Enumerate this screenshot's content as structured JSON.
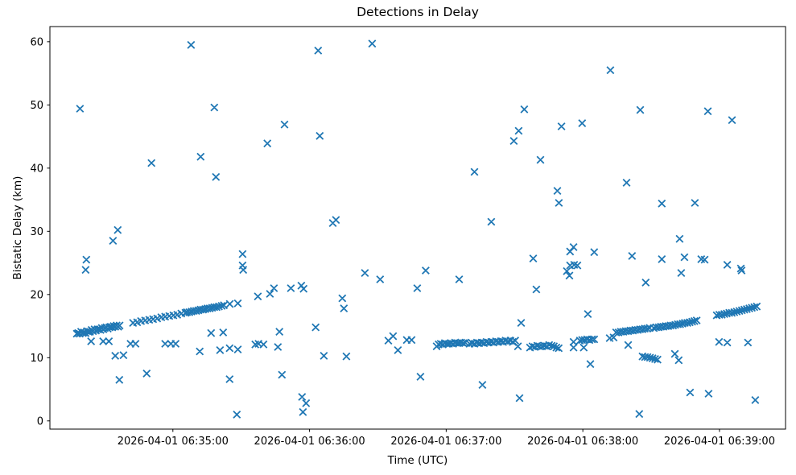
{
  "figure": {
    "title": "Detections in Delay",
    "xlabel": "Time (UTC)",
    "ylabel": "Bistatic Delay (km)"
  },
  "chart_data": {
    "type": "scatter",
    "title": "Detections in Delay",
    "xlabel": "Time (UTC)",
    "ylabel": "Bistatic Delay (km)",
    "marker": "x",
    "marker_color": "#1f77b4",
    "axis_color": "#000000",
    "grid": false,
    "legend_position": "none",
    "x_unit": "seconds after 2026-04-01 06:34:00 UTC",
    "xlim": [
      6,
      329
    ],
    "ylim": [
      -1.3,
      62.4
    ],
    "x_ticks": [
      {
        "t": 60,
        "label": "2026-04-01 06:35:00"
      },
      {
        "t": 120,
        "label": "2026-04-01 06:36:00"
      },
      {
        "t": 180,
        "label": "2026-04-01 06:37:00"
      },
      {
        "t": 240,
        "label": "2026-04-01 06:38:00"
      },
      {
        "t": 300,
        "label": "2026-04-01 06:39:00"
      }
    ],
    "y_ticks": [
      0,
      10,
      20,
      30,
      40,
      50,
      60
    ],
    "points": [
      [
        19.2,
        49.4
      ],
      [
        22.0,
        25.5
      ],
      [
        21.7,
        23.9
      ],
      [
        33.7,
        28.5
      ],
      [
        35.8,
        30.2
      ],
      [
        50.6,
        40.8
      ],
      [
        68.0,
        59.5
      ],
      [
        72.2,
        41.8
      ],
      [
        78.2,
        49.6
      ],
      [
        78.9,
        38.6
      ],
      [
        90.6,
        26.4
      ],
      [
        90.6,
        24.6
      ],
      [
        90.9,
        23.9
      ],
      [
        97.3,
        19.7
      ],
      [
        102.6,
        20.1
      ],
      [
        104.4,
        21.0
      ],
      [
        111.8,
        21.0
      ],
      [
        116.4,
        21.4
      ],
      [
        117.4,
        20.9
      ],
      [
        101.5,
        43.9
      ],
      [
        109.0,
        46.9
      ],
      [
        124.5,
        45.1
      ],
      [
        123.8,
        58.6
      ],
      [
        147.5,
        59.7
      ],
      [
        130.2,
        31.3
      ],
      [
        131.6,
        31.8
      ],
      [
        134.4,
        19.4
      ],
      [
        135.1,
        17.8
      ],
      [
        144.3,
        23.4
      ],
      [
        151.0,
        22.4
      ],
      [
        167.3,
        21.0
      ],
      [
        185.7,
        22.4
      ],
      [
        171.0,
        23.8
      ],
      [
        24.1,
        12.6
      ],
      [
        29.4,
        12.6
      ],
      [
        31.9,
        12.6
      ],
      [
        41.4,
        12.2
      ],
      [
        43.6,
        12.2
      ],
      [
        56.6,
        12.2
      ],
      [
        59.1,
        12.2
      ],
      [
        61.2,
        12.2
      ],
      [
        34.7,
        10.3
      ],
      [
        38.3,
        10.4
      ],
      [
        36.5,
        6.5
      ],
      [
        48.5,
        7.5
      ],
      [
        71.8,
        11.0
      ],
      [
        76.8,
        13.9
      ],
      [
        82.1,
        14.0
      ],
      [
        80.7,
        11.2
      ],
      [
        84.9,
        11.5
      ],
      [
        88.5,
        11.3
      ],
      [
        84.9,
        6.6
      ],
      [
        88.1,
        1.0
      ],
      [
        96.2,
        12.1
      ],
      [
        97.6,
        12.2
      ],
      [
        99.8,
        12.1
      ],
      [
        106.1,
        11.7
      ],
      [
        106.8,
        14.1
      ],
      [
        107.9,
        7.3
      ],
      [
        116.7,
        3.8
      ],
      [
        118.5,
        2.8
      ],
      [
        117.1,
        1.4
      ],
      [
        122.7,
        14.8
      ],
      [
        126.3,
        10.3
      ],
      [
        136.2,
        10.2
      ],
      [
        154.6,
        12.7
      ],
      [
        156.7,
        13.4
      ],
      [
        158.8,
        11.2
      ],
      [
        162.7,
        12.8
      ],
      [
        164.8,
        12.8
      ],
      [
        168.7,
        7.0
      ],
      [
        192.4,
        39.4
      ],
      [
        195.9,
        5.7
      ],
      [
        199.8,
        31.5
      ],
      [
        209.7,
        44.3
      ],
      [
        211.8,
        45.9
      ],
      [
        214.3,
        49.3
      ],
      [
        212.2,
        3.6
      ],
      [
        212.9,
        15.5
      ],
      [
        218.2,
        25.7
      ],
      [
        219.6,
        20.8
      ],
      [
        221.4,
        41.3
      ],
      [
        228.8,
        36.4
      ],
      [
        229.5,
        34.5
      ],
      [
        230.6,
        46.6
      ],
      [
        233.0,
        23.7
      ],
      [
        234.1,
        23.0
      ],
      [
        234.4,
        24.6
      ],
      [
        236.2,
        24.7
      ],
      [
        237.6,
        24.6
      ],
      [
        234.4,
        26.8
      ],
      [
        235.9,
        27.5
      ],
      [
        239.7,
        47.1
      ],
      [
        242.2,
        16.9
      ],
      [
        243.3,
        9.0
      ],
      [
        245.0,
        26.7
      ],
      [
        252.1,
        55.5
      ],
      [
        259.2,
        37.7
      ],
      [
        259.9,
        12.0
      ],
      [
        261.6,
        26.1
      ],
      [
        265.2,
        49.2
      ],
      [
        264.8,
        1.1
      ],
      [
        267.6,
        21.9
      ],
      [
        274.7,
        34.4
      ],
      [
        274.7,
        25.6
      ],
      [
        280.4,
        10.6
      ],
      [
        282.1,
        9.6
      ],
      [
        282.5,
        28.8
      ],
      [
        283.2,
        23.4
      ],
      [
        284.6,
        25.9
      ],
      [
        287.1,
        4.5
      ],
      [
        289.2,
        34.5
      ],
      [
        292.0,
        25.6
      ],
      [
        293.5,
        25.5
      ],
      [
        294.9,
        49.0
      ],
      [
        295.2,
        4.3
      ],
      [
        299.8,
        12.5
      ],
      [
        303.4,
        12.4
      ],
      [
        303.4,
        24.7
      ],
      [
        305.5,
        47.6
      ],
      [
        309.4,
        24.1
      ],
      [
        309.7,
        23.8
      ],
      [
        312.5,
        12.4
      ],
      [
        315.7,
        3.3
      ],
      [
        17.8,
        13.8
      ],
      [
        18.4,
        13.9
      ],
      [
        19.1,
        13.8
      ],
      [
        19.7,
        14.1
      ],
      [
        20.4,
        13.9
      ],
      [
        21.0,
        14.0
      ],
      [
        21.7,
        13.9
      ],
      [
        22.3,
        14.2
      ],
      [
        23.0,
        14.1
      ],
      [
        23.6,
        14.1
      ],
      [
        24.3,
        14.4
      ],
      [
        24.9,
        14.2
      ],
      [
        25.6,
        14.5
      ],
      [
        26.2,
        14.3
      ],
      [
        26.9,
        14.5
      ],
      [
        27.5,
        14.5
      ],
      [
        28.2,
        14.4
      ],
      [
        28.8,
        14.7
      ],
      [
        29.5,
        14.5
      ],
      [
        30.1,
        14.7
      ],
      [
        30.8,
        14.8
      ],
      [
        31.4,
        14.6
      ],
      [
        32.1,
        14.8
      ],
      [
        32.7,
        14.9
      ],
      [
        33.4,
        14.8
      ],
      [
        34.0,
        15.0
      ],
      [
        34.7,
        14.9
      ],
      [
        35.3,
        15.1
      ],
      [
        36.0,
        14.9
      ],
      [
        36.6,
        15.1
      ],
      [
        42.5,
        15.5
      ],
      [
        44.3,
        15.6
      ],
      [
        46.0,
        15.8
      ],
      [
        47.8,
        15.9
      ],
      [
        49.6,
        16.0
      ],
      [
        51.3,
        16.1
      ],
      [
        53.1,
        16.2
      ],
      [
        54.9,
        16.4
      ],
      [
        56.6,
        16.5
      ],
      [
        58.4,
        16.6
      ],
      [
        60.2,
        16.7
      ],
      [
        61.9,
        16.8
      ],
      [
        63.7,
        17.0
      ],
      [
        65.5,
        17.1
      ],
      [
        66.2,
        17.2
      ],
      [
        67.2,
        17.2
      ],
      [
        68.2,
        17.3
      ],
      [
        69.2,
        17.4
      ],
      [
        70.2,
        17.4
      ],
      [
        71.2,
        17.5
      ],
      [
        72.2,
        17.6
      ],
      [
        73.2,
        17.6
      ],
      [
        74.2,
        17.7
      ],
      [
        75.2,
        17.8
      ],
      [
        76.2,
        17.8
      ],
      [
        77.2,
        17.9
      ],
      [
        78.2,
        18.0
      ],
      [
        79.2,
        18.0
      ],
      [
        80.2,
        18.1
      ],
      [
        81.4,
        18.2
      ],
      [
        82.4,
        18.3
      ],
      [
        85.0,
        18.5
      ],
      [
        88.5,
        18.6
      ],
      [
        175.8,
        11.8
      ],
      [
        176.7,
        12.1
      ],
      [
        177.6,
        12.2
      ],
      [
        178.5,
        12.1
      ],
      [
        179.4,
        12.3
      ],
      [
        180.3,
        12.2
      ],
      [
        181.2,
        12.2
      ],
      [
        182.1,
        12.3
      ],
      [
        183.0,
        12.2
      ],
      [
        183.9,
        12.4
      ],
      [
        184.8,
        12.3
      ],
      [
        185.7,
        12.3
      ],
      [
        186.6,
        12.4
      ],
      [
        187.5,
        12.3
      ],
      [
        188.4,
        12.4
      ],
      [
        190.3,
        12.2
      ],
      [
        191.4,
        12.3
      ],
      [
        192.4,
        12.2
      ],
      [
        193.5,
        12.4
      ],
      [
        194.5,
        12.3
      ],
      [
        195.6,
        12.4
      ],
      [
        196.6,
        12.3
      ],
      [
        197.7,
        12.5
      ],
      [
        198.7,
        12.4
      ],
      [
        199.8,
        12.5
      ],
      [
        200.8,
        12.4
      ],
      [
        201.9,
        12.6
      ],
      [
        202.9,
        12.5
      ],
      [
        204.0,
        12.6
      ],
      [
        205.0,
        12.5
      ],
      [
        206.1,
        12.7
      ],
      [
        207.1,
        12.6
      ],
      [
        208.2,
        12.7
      ],
      [
        209.2,
        12.5
      ],
      [
        210.3,
        12.7
      ],
      [
        211.5,
        11.8
      ],
      [
        216.8,
        11.6
      ],
      [
        217.9,
        11.8
      ],
      [
        218.9,
        11.7
      ],
      [
        220.0,
        11.9
      ],
      [
        221.0,
        11.8
      ],
      [
        222.1,
        11.8
      ],
      [
        223.1,
        11.9
      ],
      [
        224.2,
        11.8
      ],
      [
        225.2,
        12.0
      ],
      [
        226.3,
        11.9
      ],
      [
        227.3,
        11.8
      ],
      [
        228.4,
        11.6
      ],
      [
        229.4,
        11.5
      ],
      [
        235.9,
        12.5
      ],
      [
        235.9,
        11.6
      ],
      [
        238.7,
        12.7
      ],
      [
        239.7,
        12.8
      ],
      [
        240.8,
        12.8
      ],
      [
        241.9,
        12.9
      ],
      [
        242.9,
        12.8
      ],
      [
        244.0,
        12.9
      ],
      [
        245.0,
        12.9
      ],
      [
        240.4,
        11.6
      ],
      [
        251.8,
        13.1
      ],
      [
        253.5,
        13.2
      ],
      [
        254.6,
        14.0
      ],
      [
        255.7,
        14.0
      ],
      [
        256.7,
        14.1
      ],
      [
        257.8,
        14.1
      ],
      [
        258.8,
        14.2
      ],
      [
        259.9,
        14.2
      ],
      [
        260.9,
        14.3
      ],
      [
        262.0,
        14.3
      ],
      [
        263.0,
        14.4
      ],
      [
        264.1,
        14.4
      ],
      [
        265.1,
        14.5
      ],
      [
        266.2,
        14.5
      ],
      [
        267.2,
        14.6
      ],
      [
        268.3,
        14.6
      ],
      [
        269.3,
        14.7
      ],
      [
        271.2,
        14.7
      ],
      [
        272.2,
        14.8
      ],
      [
        273.3,
        14.8
      ],
      [
        274.3,
        14.9
      ],
      [
        275.4,
        14.9
      ],
      [
        276.4,
        15.0
      ],
      [
        277.5,
        15.0
      ],
      [
        278.5,
        15.1
      ],
      [
        279.6,
        15.1
      ],
      [
        280.6,
        15.2
      ],
      [
        281.7,
        15.3
      ],
      [
        282.7,
        15.3
      ],
      [
        283.8,
        15.4
      ],
      [
        284.8,
        15.5
      ],
      [
        285.9,
        15.5
      ],
      [
        286.9,
        15.6
      ],
      [
        288.0,
        15.7
      ],
      [
        289.0,
        15.8
      ],
      [
        290.0,
        15.9
      ],
      [
        298.8,
        16.7
      ],
      [
        299.9,
        16.8
      ],
      [
        301.0,
        16.8
      ],
      [
        302.1,
        16.9
      ],
      [
        303.2,
        17.0
      ],
      [
        304.3,
        17.1
      ],
      [
        305.4,
        17.1
      ],
      [
        306.5,
        17.2
      ],
      [
        307.6,
        17.3
      ],
      [
        308.7,
        17.4
      ],
      [
        309.8,
        17.5
      ],
      [
        310.9,
        17.6
      ],
      [
        312.0,
        17.7
      ],
      [
        313.1,
        17.8
      ],
      [
        314.2,
        17.9
      ],
      [
        315.3,
        18.0
      ],
      [
        316.4,
        18.1
      ],
      [
        266.2,
        10.2
      ],
      [
        267.3,
        10.1
      ],
      [
        268.4,
        10.1
      ],
      [
        269.5,
        10.0
      ],
      [
        270.6,
        9.9
      ],
      [
        271.7,
        9.8
      ],
      [
        272.8,
        9.7
      ]
    ]
  }
}
